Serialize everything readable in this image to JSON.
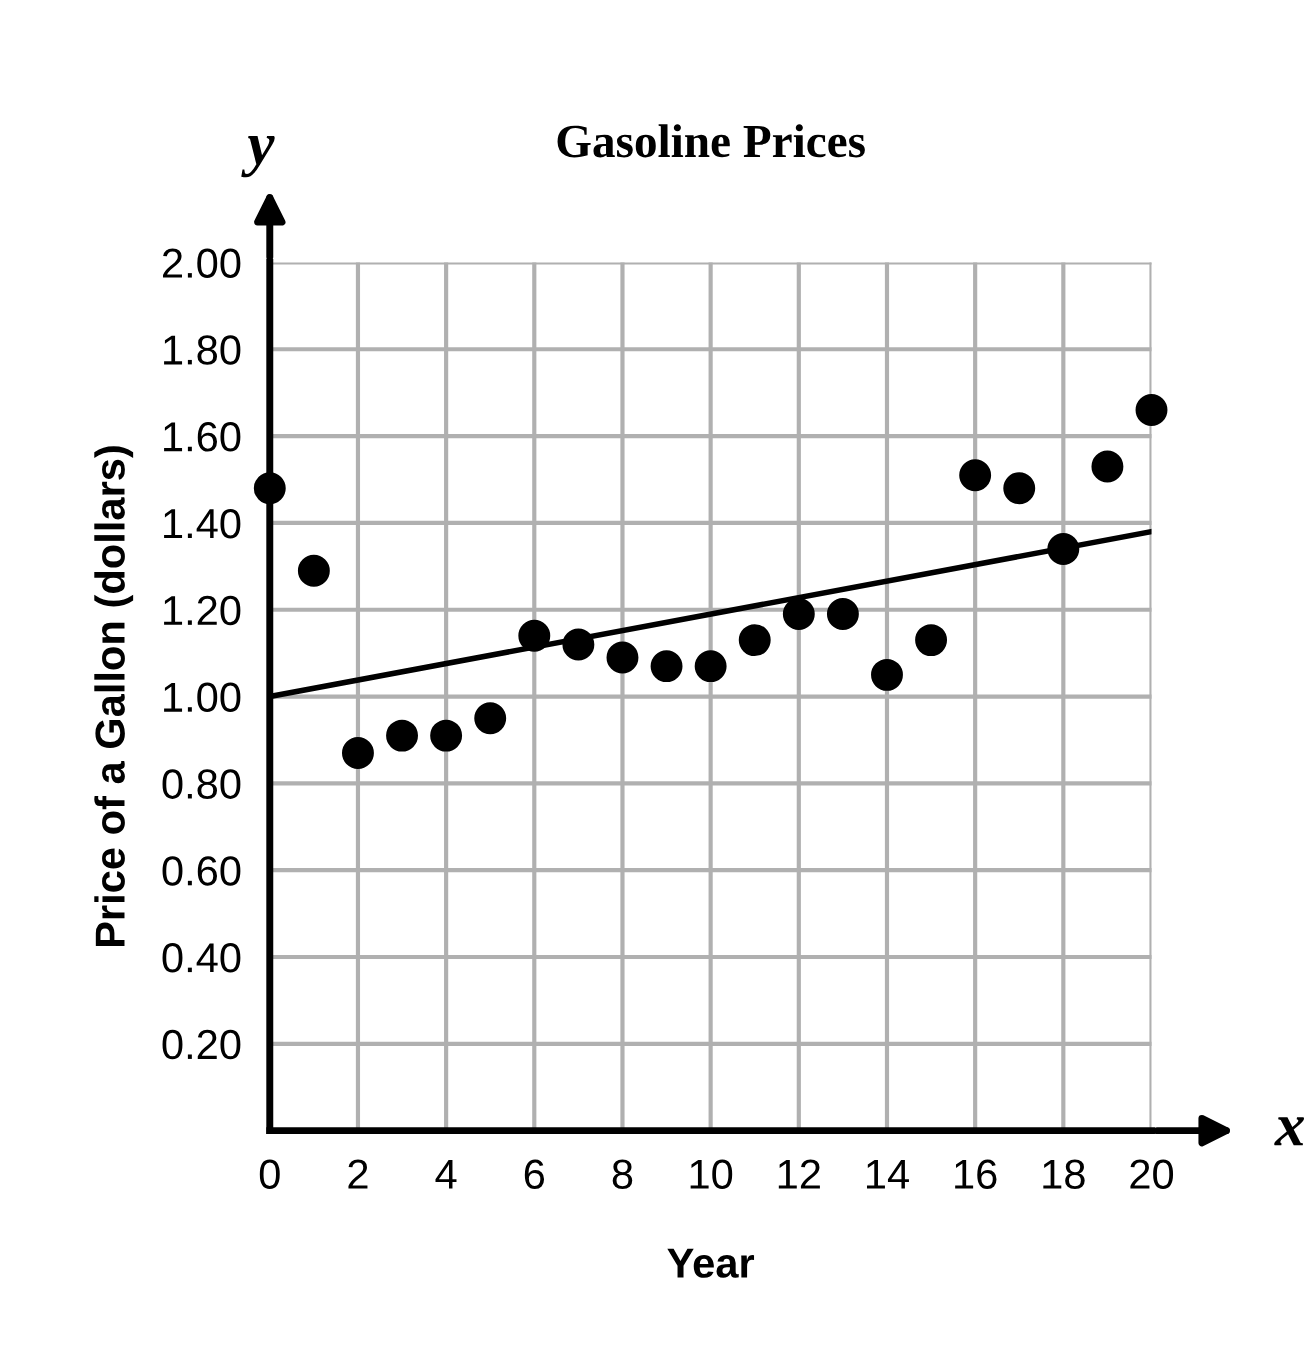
{
  "chart_data": {
    "type": "scatter",
    "title": "Gasoline Prices",
    "xlabel": "Year",
    "ylabel": "Price of a Gallon (dollars)",
    "annotations": [
      "x",
      "y"
    ],
    "series": [
      {
        "color": "#000000",
        "marker": "circle",
        "x": [
          0,
          1,
          2,
          3,
          4,
          5,
          6,
          7,
          8,
          9,
          10,
          11,
          12,
          13,
          14,
          15,
          16,
          17,
          18,
          19,
          20
        ],
        "values": [
          1.48,
          1.29,
          0.87,
          0.91,
          0.91,
          0.95,
          1.14,
          1.12,
          1.09,
          1.07,
          1.07,
          1.13,
          1.19,
          1.19,
          1.05,
          1.13,
          1.51,
          1.48,
          1.34,
          1.53,
          1.66
        ]
      },
      {
        "type": "line",
        "color": "#000000",
        "marker": "none",
        "line_style": "solid",
        "x": [
          0,
          20
        ],
        "values": [
          1.0,
          1.38
        ]
      }
    ],
    "xlim": [
      0,
      20
    ],
    "ylim": [
      0,
      2
    ],
    "xticks": [
      0,
      2,
      4,
      6,
      8,
      10,
      12,
      14,
      16,
      18,
      20
    ],
    "yticks": [
      {
        "value": 0.2,
        "label": "0.20"
      },
      {
        "value": 0.4,
        "label": "0.40"
      },
      {
        "value": 0.6,
        "label": "0.60"
      },
      {
        "value": 0.8,
        "label": "0.80"
      },
      {
        "value": 1.0,
        "label": "1.00"
      },
      {
        "value": 1.2,
        "label": "1.20"
      },
      {
        "value": 1.4,
        "label": "1.40"
      },
      {
        "value": 1.6,
        "label": "1.60"
      },
      {
        "value": 1.8,
        "label": "1.80"
      },
      {
        "value": 2.0,
        "label": "2.00"
      }
    ],
    "grid": true
  }
}
